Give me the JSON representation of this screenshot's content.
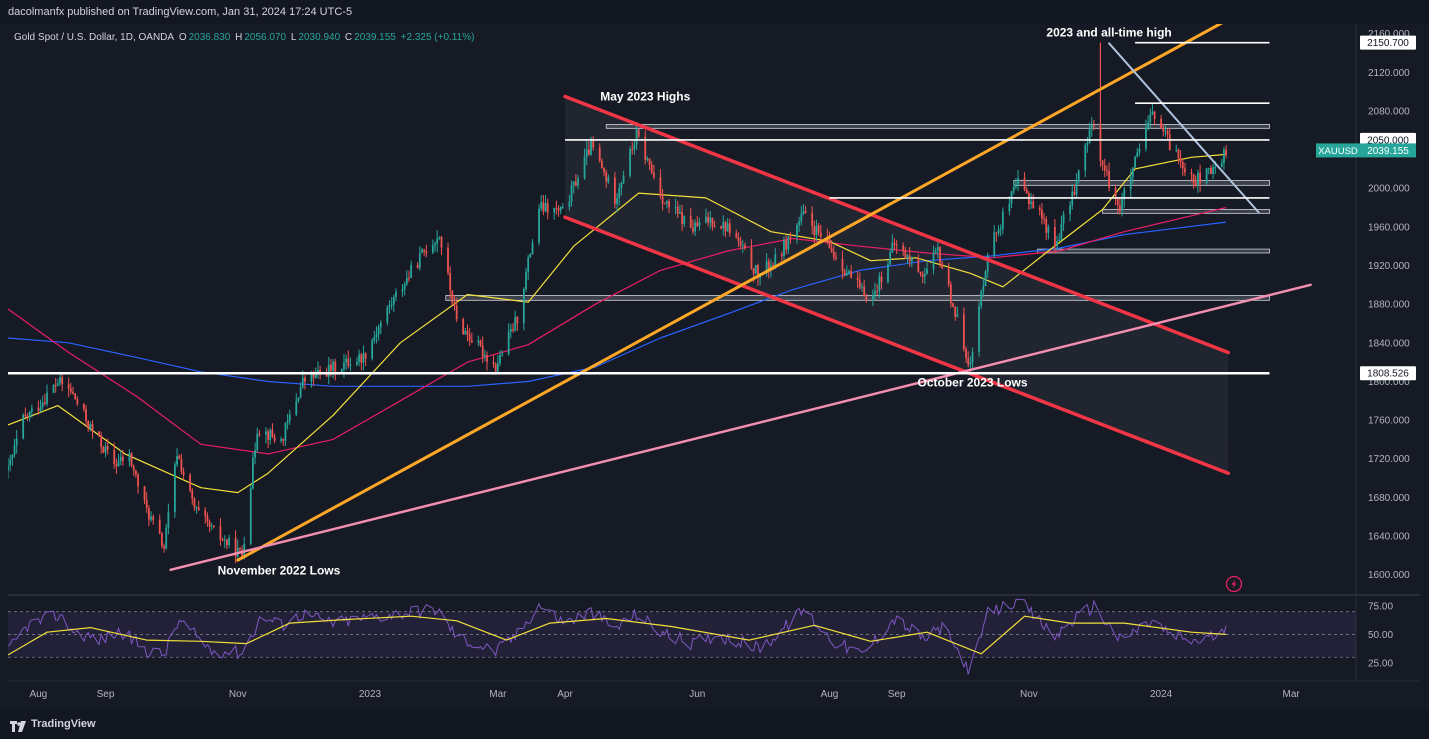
{
  "publisher": "dacolmanfx published on TradingView.com, Jan 31, 2024 17:24 UTC-5",
  "brand": "TradingView",
  "legend": {
    "title": "Gold Spot / U.S. Dollar, 1D, OANDA",
    "open_key": "O",
    "open": "2036.830",
    "high_key": "H",
    "high": "2056.070",
    "low_key": "L",
    "low": "2030.940",
    "close_key": "C",
    "close": "2039.155",
    "change": "+2.325 (+0.11%)"
  },
  "colors": {
    "background": "#161a25",
    "up_candle": "#26a69a",
    "down_candle": "#ef5350",
    "ma_fast": "#f2e03a",
    "ma_mid": "#e91e63",
    "ma_slow": "#2962ff",
    "channel": "#f23645",
    "uptrend": "#ffa726",
    "support_trend": "#f48fb1",
    "downtrend": "#b0c4de",
    "level": "#ffffff",
    "rsi": "#7e57c2",
    "rsi_ma": "#f2e03a"
  },
  "chart_data": {
    "type": "candlestick",
    "symbol": "XAUUSD",
    "timeframe": "1D",
    "x_range": [
      "2022-07-18",
      "2024-03-18"
    ],
    "ylim": [
      1580,
      2170
    ],
    "y_ticks": [
      1600,
      1640,
      1680,
      1720,
      1760,
      1800,
      1840,
      1880,
      1920,
      1960,
      2000,
      2040,
      2080,
      2120,
      2160
    ],
    "y_tick_labels": [
      "1600.000",
      "1640.000",
      "1680.000",
      "1720.000",
      "1760.000",
      "1800.000",
      "1840.000",
      "1880.000",
      "1920.000",
      "1960.000",
      "2000.000",
      "2040.000",
      "2080.000",
      "2120.000",
      "2160.000"
    ],
    "x_ticks": [
      {
        "label": "Aug",
        "date": "2022-08-01"
      },
      {
        "label": "Sep",
        "date": "2022-09-01"
      },
      {
        "label": "Nov",
        "date": "2022-11-01"
      },
      {
        "label": "2023",
        "date": "2023-01-01"
      },
      {
        "label": "Mar",
        "date": "2023-03-01"
      },
      {
        "label": "Apr",
        "date": "2023-04-01"
      },
      {
        "label": "Jun",
        "date": "2023-06-01"
      },
      {
        "label": "Aug",
        "date": "2023-08-01"
      },
      {
        "label": "Sep",
        "date": "2023-09-01"
      },
      {
        "label": "Nov",
        "date": "2023-11-01"
      },
      {
        "label": "2024",
        "date": "2024-01-01"
      },
      {
        "label": "Mar",
        "date": "2024-03-01"
      }
    ],
    "price_path": [
      [
        "2022-07-18",
        1708
      ],
      [
        "2022-07-25",
        1760
      ],
      [
        "2022-08-01",
        1775
      ],
      [
        "2022-08-10",
        1800
      ],
      [
        "2022-08-16",
        1790
      ],
      [
        "2022-08-26",
        1748
      ],
      [
        "2022-09-05",
        1715
      ],
      [
        "2022-09-12",
        1722
      ],
      [
        "2022-09-19",
        1672
      ],
      [
        "2022-09-28",
        1628
      ],
      [
        "2022-10-04",
        1726
      ],
      [
        "2022-10-12",
        1668
      ],
      [
        "2022-10-20",
        1646
      ],
      [
        "2022-11-03",
        1620
      ],
      [
        "2022-11-10",
        1752
      ],
      [
        "2022-11-21",
        1738
      ],
      [
        "2022-12-01",
        1800
      ],
      [
        "2022-12-13",
        1812
      ],
      [
        "2022-12-29",
        1826
      ],
      [
        "2023-01-10",
        1878
      ],
      [
        "2023-01-26",
        1935
      ],
      [
        "2023-02-02",
        1952
      ],
      [
        "2023-02-10",
        1862
      ],
      [
        "2023-02-28",
        1815
      ],
      [
        "2023-03-10",
        1866
      ],
      [
        "2023-03-20",
        1980
      ],
      [
        "2023-03-31",
        1975
      ],
      [
        "2023-04-13",
        2045
      ],
      [
        "2023-04-24",
        1990
      ],
      [
        "2023-05-04",
        2055
      ],
      [
        "2023-05-17",
        1985
      ],
      [
        "2023-05-30",
        1958
      ],
      [
        "2023-06-07",
        1968
      ],
      [
        "2023-06-16",
        1958
      ],
      [
        "2023-06-29",
        1910
      ],
      [
        "2023-07-07",
        1925
      ],
      [
        "2023-07-20",
        1972
      ],
      [
        "2023-08-02",
        1935
      ],
      [
        "2023-08-16",
        1892
      ],
      [
        "2023-08-21",
        1888
      ],
      [
        "2023-08-31",
        1942
      ],
      [
        "2023-09-14",
        1910
      ],
      [
        "2023-09-20",
        1935
      ],
      [
        "2023-10-05",
        1815
      ],
      [
        "2023-10-13",
        1935
      ],
      [
        "2023-10-27",
        2005
      ],
      [
        "2023-11-06",
        1975
      ],
      [
        "2023-11-13",
        1940
      ],
      [
        "2023-11-22",
        2000
      ],
      [
        "2023-12-01",
        2072
      ],
      [
        "2023-12-04",
        2028
      ],
      [
        "2023-12-13",
        1980
      ],
      [
        "2023-12-28",
        2078
      ],
      [
        "2024-01-05",
        2045
      ],
      [
        "2024-01-17",
        2008
      ],
      [
        "2024-01-25",
        2018
      ],
      [
        "2024-01-31",
        2039
      ]
    ],
    "ma_fast_path": [
      [
        "2022-07-18",
        1755
      ],
      [
        "2022-08-10",
        1775
      ],
      [
        "2022-09-10",
        1725
      ],
      [
        "2022-10-15",
        1690
      ],
      [
        "2022-11-01",
        1685
      ],
      [
        "2022-11-15",
        1705
      ],
      [
        "2022-12-15",
        1765
      ],
      [
        "2023-01-15",
        1840
      ],
      [
        "2023-02-15",
        1890
      ],
      [
        "2023-03-15",
        1882
      ],
      [
        "2023-04-05",
        1940
      ],
      [
        "2023-05-05",
        1995
      ],
      [
        "2023-06-05",
        1990
      ],
      [
        "2023-07-05",
        1955
      ],
      [
        "2023-08-01",
        1945
      ],
      [
        "2023-08-20",
        1925
      ],
      [
        "2023-09-10",
        1928
      ],
      [
        "2023-10-05",
        1912
      ],
      [
        "2023-10-20",
        1898
      ],
      [
        "2023-11-10",
        1935
      ],
      [
        "2023-12-05",
        1978
      ],
      [
        "2023-12-20",
        2020
      ],
      [
        "2024-01-15",
        2032
      ],
      [
        "2024-01-31",
        2035
      ]
    ],
    "ma_mid_path": [
      [
        "2022-07-18",
        1875
      ],
      [
        "2022-08-15",
        1830
      ],
      [
        "2022-09-15",
        1785
      ],
      [
        "2022-10-15",
        1735
      ],
      [
        "2022-11-15",
        1725
      ],
      [
        "2022-12-15",
        1740
      ],
      [
        "2023-01-15",
        1780
      ],
      [
        "2023-02-15",
        1820
      ],
      [
        "2023-03-15",
        1838
      ],
      [
        "2023-04-15",
        1880
      ],
      [
        "2023-05-15",
        1915
      ],
      [
        "2023-06-15",
        1935
      ],
      [
        "2023-07-15",
        1948
      ],
      [
        "2023-08-15",
        1940
      ],
      [
        "2023-09-15",
        1933
      ],
      [
        "2023-10-15",
        1928
      ],
      [
        "2023-11-15",
        1935
      ],
      [
        "2023-12-15",
        1955
      ],
      [
        "2024-01-31",
        1980
      ]
    ],
    "ma_slow_path": [
      [
        "2022-07-18",
        1845
      ],
      [
        "2022-08-15",
        1840
      ],
      [
        "2022-09-15",
        1825
      ],
      [
        "2022-10-15",
        1810
      ],
      [
        "2022-11-15",
        1800
      ],
      [
        "2022-12-15",
        1795
      ],
      [
        "2023-01-15",
        1795
      ],
      [
        "2023-02-15",
        1795
      ],
      [
        "2023-03-15",
        1800
      ],
      [
        "2023-04-15",
        1815
      ],
      [
        "2023-05-15",
        1845
      ],
      [
        "2023-06-15",
        1870
      ],
      [
        "2023-07-15",
        1895
      ],
      [
        "2023-08-15",
        1915
      ],
      [
        "2023-09-15",
        1925
      ],
      [
        "2023-10-15",
        1930
      ],
      [
        "2023-11-15",
        1938
      ],
      [
        "2023-12-15",
        1952
      ],
      [
        "2024-01-31",
        1965
      ]
    ],
    "horizontal_levels": [
      {
        "start": "2023-12-20",
        "end": "2024-02-20",
        "price": 2150.7,
        "label": "2150.700"
      },
      {
        "start": "2023-12-20",
        "end": "2024-02-20",
        "price": 2088
      },
      {
        "start": "2023-04-01",
        "end": "2024-02-20",
        "price": 2050.0,
        "label": "2050.000"
      },
      {
        "start": "2023-08-01",
        "end": "2024-02-20",
        "price": 1990
      },
      {
        "start": "2022-07-18",
        "end": "2024-02-20",
        "price": 1808.526,
        "label": "1808.526"
      }
    ],
    "zones": [
      {
        "start": "2023-04-20",
        "end": "2024-02-20",
        "low": 2062,
        "high": 2066
      },
      {
        "start": "2023-10-25",
        "end": "2024-02-20",
        "low": 2003,
        "high": 2008
      },
      {
        "start": "2023-12-05",
        "end": "2024-02-20",
        "low": 1974,
        "high": 1978
      },
      {
        "start": "2023-11-05",
        "end": "2024-02-20",
        "low": 1933,
        "high": 1937
      },
      {
        "start": "2023-02-05",
        "end": "2024-02-20",
        "low": 1884,
        "high": 1889
      }
    ],
    "trendlines": [
      {
        "role": "channel_top",
        "from": [
          "2023-04-01",
          2095
        ],
        "to": [
          "2024-02-01",
          1830
        ]
      },
      {
        "role": "channel_bottom",
        "from": [
          "2023-04-01",
          1970
        ],
        "to": [
          "2024-02-01",
          1705
        ]
      },
      {
        "role": "uptrend",
        "from": [
          "2022-11-01",
          1615
        ],
        "to": [
          "2024-02-20",
          2198
        ]
      },
      {
        "role": "support_trend",
        "from": [
          "2022-10-01",
          1605
        ],
        "to": [
          "2024-03-10",
          1900
        ]
      },
      {
        "role": "downtrend",
        "from": [
          "2023-12-08",
          2150
        ],
        "to": [
          "2024-02-15",
          1975
        ]
      }
    ],
    "price_tags": [
      {
        "price": 2039.155,
        "symbol": "XAUUSD",
        "label": "2039.155"
      }
    ],
    "annotations": [
      {
        "text": "2023 and all-time high",
        "date": "2023-12-08",
        "price": 2157
      },
      {
        "text": "May 2023 Highs",
        "date": "2023-05-08",
        "price": 2091
      },
      {
        "text": "October 2023 Lows",
        "date": "2023-10-06",
        "price": 1795
      },
      {
        "text": "November 2022 Lows",
        "date": "2022-11-20",
        "price": 1600
      }
    ],
    "rsi": {
      "ylim": [
        10,
        82
      ],
      "y_ticks": [
        25,
        50,
        75
      ],
      "y_tick_labels": [
        "25.00",
        "50.00",
        "75.00"
      ],
      "bands": [
        30,
        70
      ],
      "path": [
        [
          "2022-07-18",
          35
        ],
        [
          "2022-07-27",
          58
        ],
        [
          "2022-08-10",
          67
        ],
        [
          "2022-08-18",
          52
        ],
        [
          "2022-08-30",
          45
        ],
        [
          "2022-09-08",
          53
        ],
        [
          "2022-09-20",
          36
        ],
        [
          "2022-09-28",
          32
        ],
        [
          "2022-10-05",
          62
        ],
        [
          "2022-10-20",
          36
        ],
        [
          "2022-11-03",
          34
        ],
        [
          "2022-11-12",
          66
        ],
        [
          "2022-11-21",
          58
        ],
        [
          "2022-12-01",
          68
        ],
        [
          "2022-12-15",
          60
        ],
        [
          "2023-01-05",
          66
        ],
        [
          "2023-01-20",
          70
        ],
        [
          "2023-02-01",
          72
        ],
        [
          "2023-02-10",
          48
        ],
        [
          "2023-02-28",
          35
        ],
        [
          "2023-03-10",
          50
        ],
        [
          "2023-03-20",
          76
        ],
        [
          "2023-04-01",
          60
        ],
        [
          "2023-04-13",
          70
        ],
        [
          "2023-04-24",
          55
        ],
        [
          "2023-05-04",
          68
        ],
        [
          "2023-05-17",
          50
        ],
        [
          "2023-05-30",
          42
        ],
        [
          "2023-06-10",
          50
        ],
        [
          "2023-06-29",
          38
        ],
        [
          "2023-07-07",
          48
        ],
        [
          "2023-07-20",
          72
        ],
        [
          "2023-08-02",
          45
        ],
        [
          "2023-08-16",
          32
        ],
        [
          "2023-08-31",
          64
        ],
        [
          "2023-09-14",
          46
        ],
        [
          "2023-09-22",
          56
        ],
        [
          "2023-10-05",
          18
        ],
        [
          "2023-10-13",
          68
        ],
        [
          "2023-10-27",
          80
        ],
        [
          "2023-11-13",
          48
        ],
        [
          "2023-11-22",
          64
        ],
        [
          "2023-12-01",
          75
        ],
        [
          "2023-12-13",
          45
        ],
        [
          "2023-12-28",
          62
        ],
        [
          "2024-01-05",
          50
        ],
        [
          "2024-01-17",
          44
        ],
        [
          "2024-01-31",
          52
        ]
      ],
      "ma_path": [
        [
          "2022-07-18",
          32
        ],
        [
          "2022-08-05",
          52
        ],
        [
          "2022-08-25",
          56
        ],
        [
          "2022-09-20",
          45
        ],
        [
          "2022-10-15",
          44
        ],
        [
          "2022-11-05",
          42
        ],
        [
          "2022-11-25",
          60
        ],
        [
          "2022-12-20",
          63
        ],
        [
          "2023-01-20",
          66
        ],
        [
          "2023-02-10",
          62
        ],
        [
          "2023-03-05",
          45
        ],
        [
          "2023-03-25",
          60
        ],
        [
          "2023-04-20",
          64
        ],
        [
          "2023-05-20",
          57
        ],
        [
          "2023-06-25",
          45
        ],
        [
          "2023-07-25",
          58
        ],
        [
          "2023-08-20",
          44
        ],
        [
          "2023-09-15",
          52
        ],
        [
          "2023-10-10",
          33
        ],
        [
          "2023-10-30",
          66
        ],
        [
          "2023-11-20",
          60
        ],
        [
          "2023-12-15",
          60
        ],
        [
          "2024-01-15",
          52
        ],
        [
          "2024-01-31",
          50
        ]
      ]
    }
  }
}
